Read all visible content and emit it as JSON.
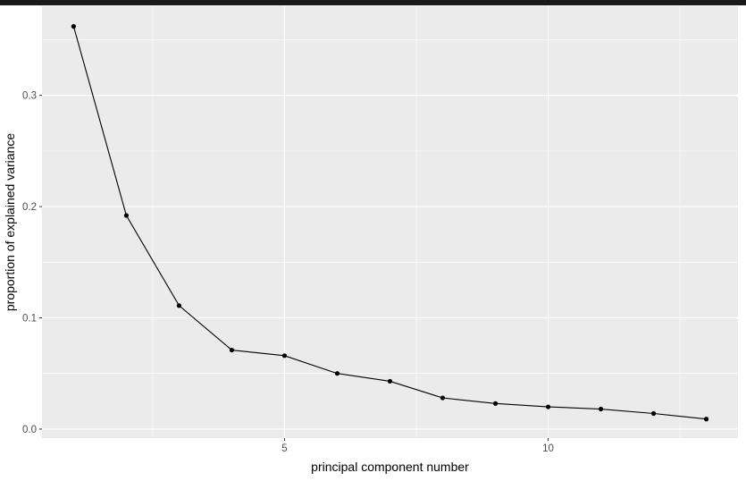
{
  "chart_data": {
    "type": "line",
    "title": "",
    "xlabel": "principal component number",
    "ylabel": "proportion of explained variance",
    "x": [
      1,
      2,
      3,
      4,
      5,
      6,
      7,
      8,
      9,
      10,
      11,
      12,
      13
    ],
    "y": [
      0.362,
      0.192,
      0.111,
      0.071,
      0.066,
      0.05,
      0.043,
      0.028,
      0.023,
      0.02,
      0.018,
      0.014,
      0.009
    ],
    "xlim": [
      0.4,
      13.6
    ],
    "ylim": [
      -0.0081,
      0.3801
    ],
    "x_ticks": [
      5,
      10
    ],
    "x_tick_labels": [
      "5",
      "10"
    ],
    "x_minor_ticks": [
      2.5,
      7.5,
      12.5
    ],
    "y_ticks": [
      0,
      0.1,
      0.2,
      0.3
    ],
    "y_tick_labels": [
      "0.0",
      "0.1",
      "0.2",
      "0.3"
    ],
    "y_minor_ticks": [
      0.05,
      0.15,
      0.25,
      0.35
    ],
    "grid": true,
    "panel_background": "#ebebeb",
    "grid_color": "#ffffff",
    "line_color": "#000000",
    "point_color": "#000000"
  }
}
